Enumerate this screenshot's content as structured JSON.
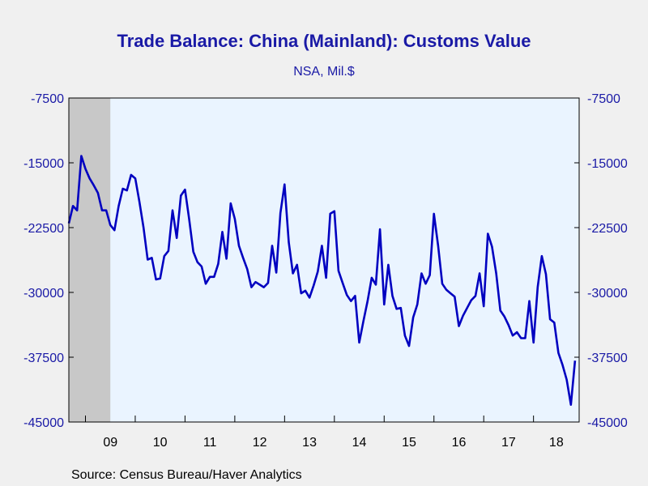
{
  "chart_data": {
    "type": "line",
    "title": "Trade Balance: China (Mainland): Customs Value",
    "subtitle": "NSA, Mil.$",
    "source": "Source:  Census Bureau/Haver Analytics",
    "ylim": [
      -45000,
      -7500
    ],
    "y_ticks": [
      "-7500",
      "-15000",
      "-22500",
      "-30000",
      "-37500",
      "-45000"
    ],
    "y_tick_values": [
      -7500,
      -15000,
      -22500,
      -30000,
      -37500,
      -45000
    ],
    "x_ticks": [
      "09",
      "10",
      "11",
      "12",
      "13",
      "14",
      "15",
      "16",
      "17",
      "18"
    ],
    "x_range": [
      "2008-09",
      "2018-12"
    ],
    "recession_shading": {
      "start": "2008-09",
      "end": "2009-06",
      "color": "#c8c8c8"
    },
    "grid": false,
    "colors": {
      "line": "#0000c0",
      "plot_bg": "#eaf4ff",
      "axis": "#000000",
      "text": "#1a1aa6"
    },
    "series": [
      {
        "name": "",
        "x_start": "2008-09",
        "frequency": "monthly",
        "values": [
          -22000,
          -20000,
          -20500,
          -14200,
          -15700,
          -16800,
          -17600,
          -18500,
          -20500,
          -20500,
          -22200,
          -22800,
          -20000,
          -18000,
          -18200,
          -16400,
          -16800,
          -19500,
          -22500,
          -26200,
          -26000,
          -28500,
          -28400,
          -25800,
          -25200,
          -20500,
          -23700,
          -18800,
          -18100,
          -21500,
          -25300,
          -26500,
          -27000,
          -29000,
          -28200,
          -28200,
          -26700,
          -23000,
          -26100,
          -19700,
          -21500,
          -24600,
          -26000,
          -27300,
          -29400,
          -28800,
          -29100,
          -29400,
          -28900,
          -24600,
          -27700,
          -20800,
          -17500,
          -24200,
          -27800,
          -26800,
          -30100,
          -29800,
          -30600,
          -29200,
          -27600,
          -24600,
          -28300,
          -20900,
          -20600,
          -27500,
          -28900,
          -30300,
          -31000,
          -30400,
          -35800,
          -33300,
          -31000,
          -28300,
          -29100,
          -22700,
          -31400,
          -26800,
          -30400,
          -31900,
          -31800,
          -35000,
          -36200,
          -32900,
          -31400,
          -27800,
          -29000,
          -28000,
          -20900,
          -24600,
          -29000,
          -29700,
          -30100,
          -30500,
          -33900,
          -32700,
          -31800,
          -30900,
          -30400,
          -27800,
          -31600,
          -23200,
          -24700,
          -27800,
          -32100,
          -32800,
          -33800,
          -35000,
          -34600,
          -35300,
          -35300,
          -31000,
          -35800,
          -29400,
          -25800,
          -27900,
          -33100,
          -33500,
          -37000,
          -38400,
          -40100,
          -43000,
          -37900
        ]
      }
    ]
  }
}
